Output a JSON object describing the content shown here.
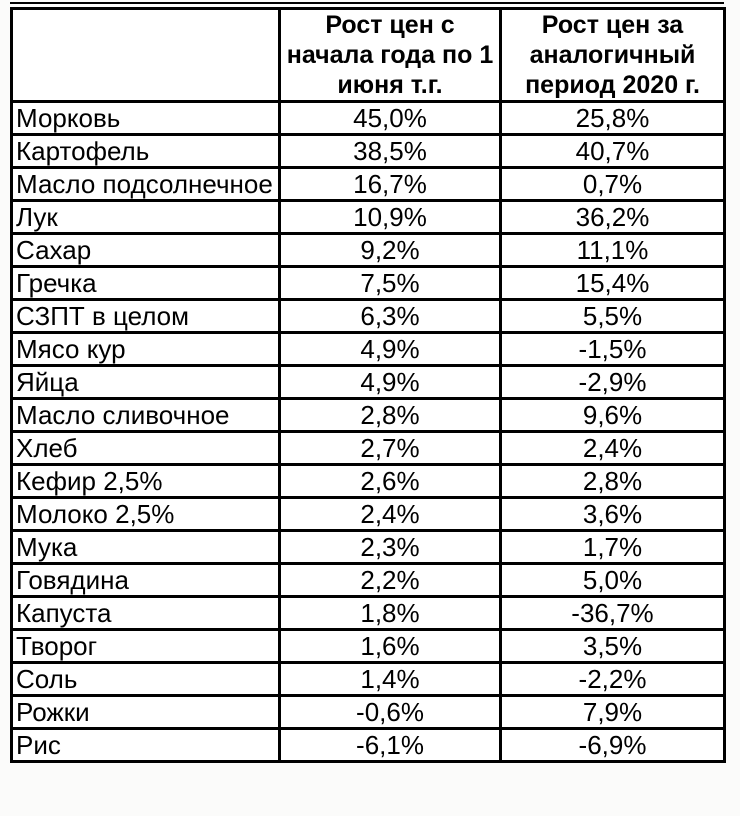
{
  "header": {
    "product_col_label": "",
    "ytd_col_label_display": "Рост цен с\nначала года по 1\nиюня т.г.",
    "prev_col_label_display": "Рост цен за\nаналогичный\nпериод 2020 г."
  },
  "chart_data": {
    "type": "table",
    "title": "",
    "columns": [
      "",
      "Рост цен с начала года по 1 июня т.г.",
      "Рост цен за аналогичный период 2020 г."
    ],
    "rows": [
      [
        "Морковь",
        "45,0%",
        "25,8%"
      ],
      [
        "Картофель",
        "38,5%",
        "40,7%"
      ],
      [
        "Масло подсолнечное",
        "16,7%",
        "0,7%"
      ],
      [
        "Лук",
        "10,9%",
        "36,2%"
      ],
      [
        "Сахар",
        "9,2%",
        "11,1%"
      ],
      [
        "Гречка",
        "7,5%",
        "15,4%"
      ],
      [
        "СЗПТ в целом",
        "6,3%",
        "5,5%"
      ],
      [
        "Мясо кур",
        "4,9%",
        "-1,5%"
      ],
      [
        "Яйца",
        "4,9%",
        "-2,9%"
      ],
      [
        "Масло сливочное",
        "2,8%",
        "9,6%"
      ],
      [
        "Хлеб",
        "2,7%",
        "2,4%"
      ],
      [
        "Кефир 2,5%",
        "2,6%",
        "2,8%"
      ],
      [
        "Молоко 2,5%",
        "2,4%",
        "3,6%"
      ],
      [
        "Мука",
        "2,3%",
        "1,7%"
      ],
      [
        "Говядина",
        "2,2%",
        "5,0%"
      ],
      [
        "Капуста",
        "1,8%",
        "-36,7%"
      ],
      [
        "Творог",
        "1,6%",
        "3,5%"
      ],
      [
        "Соль",
        "1,4%",
        "-2,2%"
      ],
      [
        "Рожки",
        "-0,6%",
        "7,9%"
      ],
      [
        "Рис",
        "-6,1%",
        "-6,9%"
      ]
    ],
    "value_format": "percent, comma decimal separator",
    "layout": {
      "grid": true,
      "header_bold": true,
      "product_align": "left",
      "value_align": "center"
    }
  },
  "colors": {
    "page_bg": "#fbfbfa",
    "cell_bg": "#ffffff",
    "border": "#000000",
    "text": "#000000"
  }
}
